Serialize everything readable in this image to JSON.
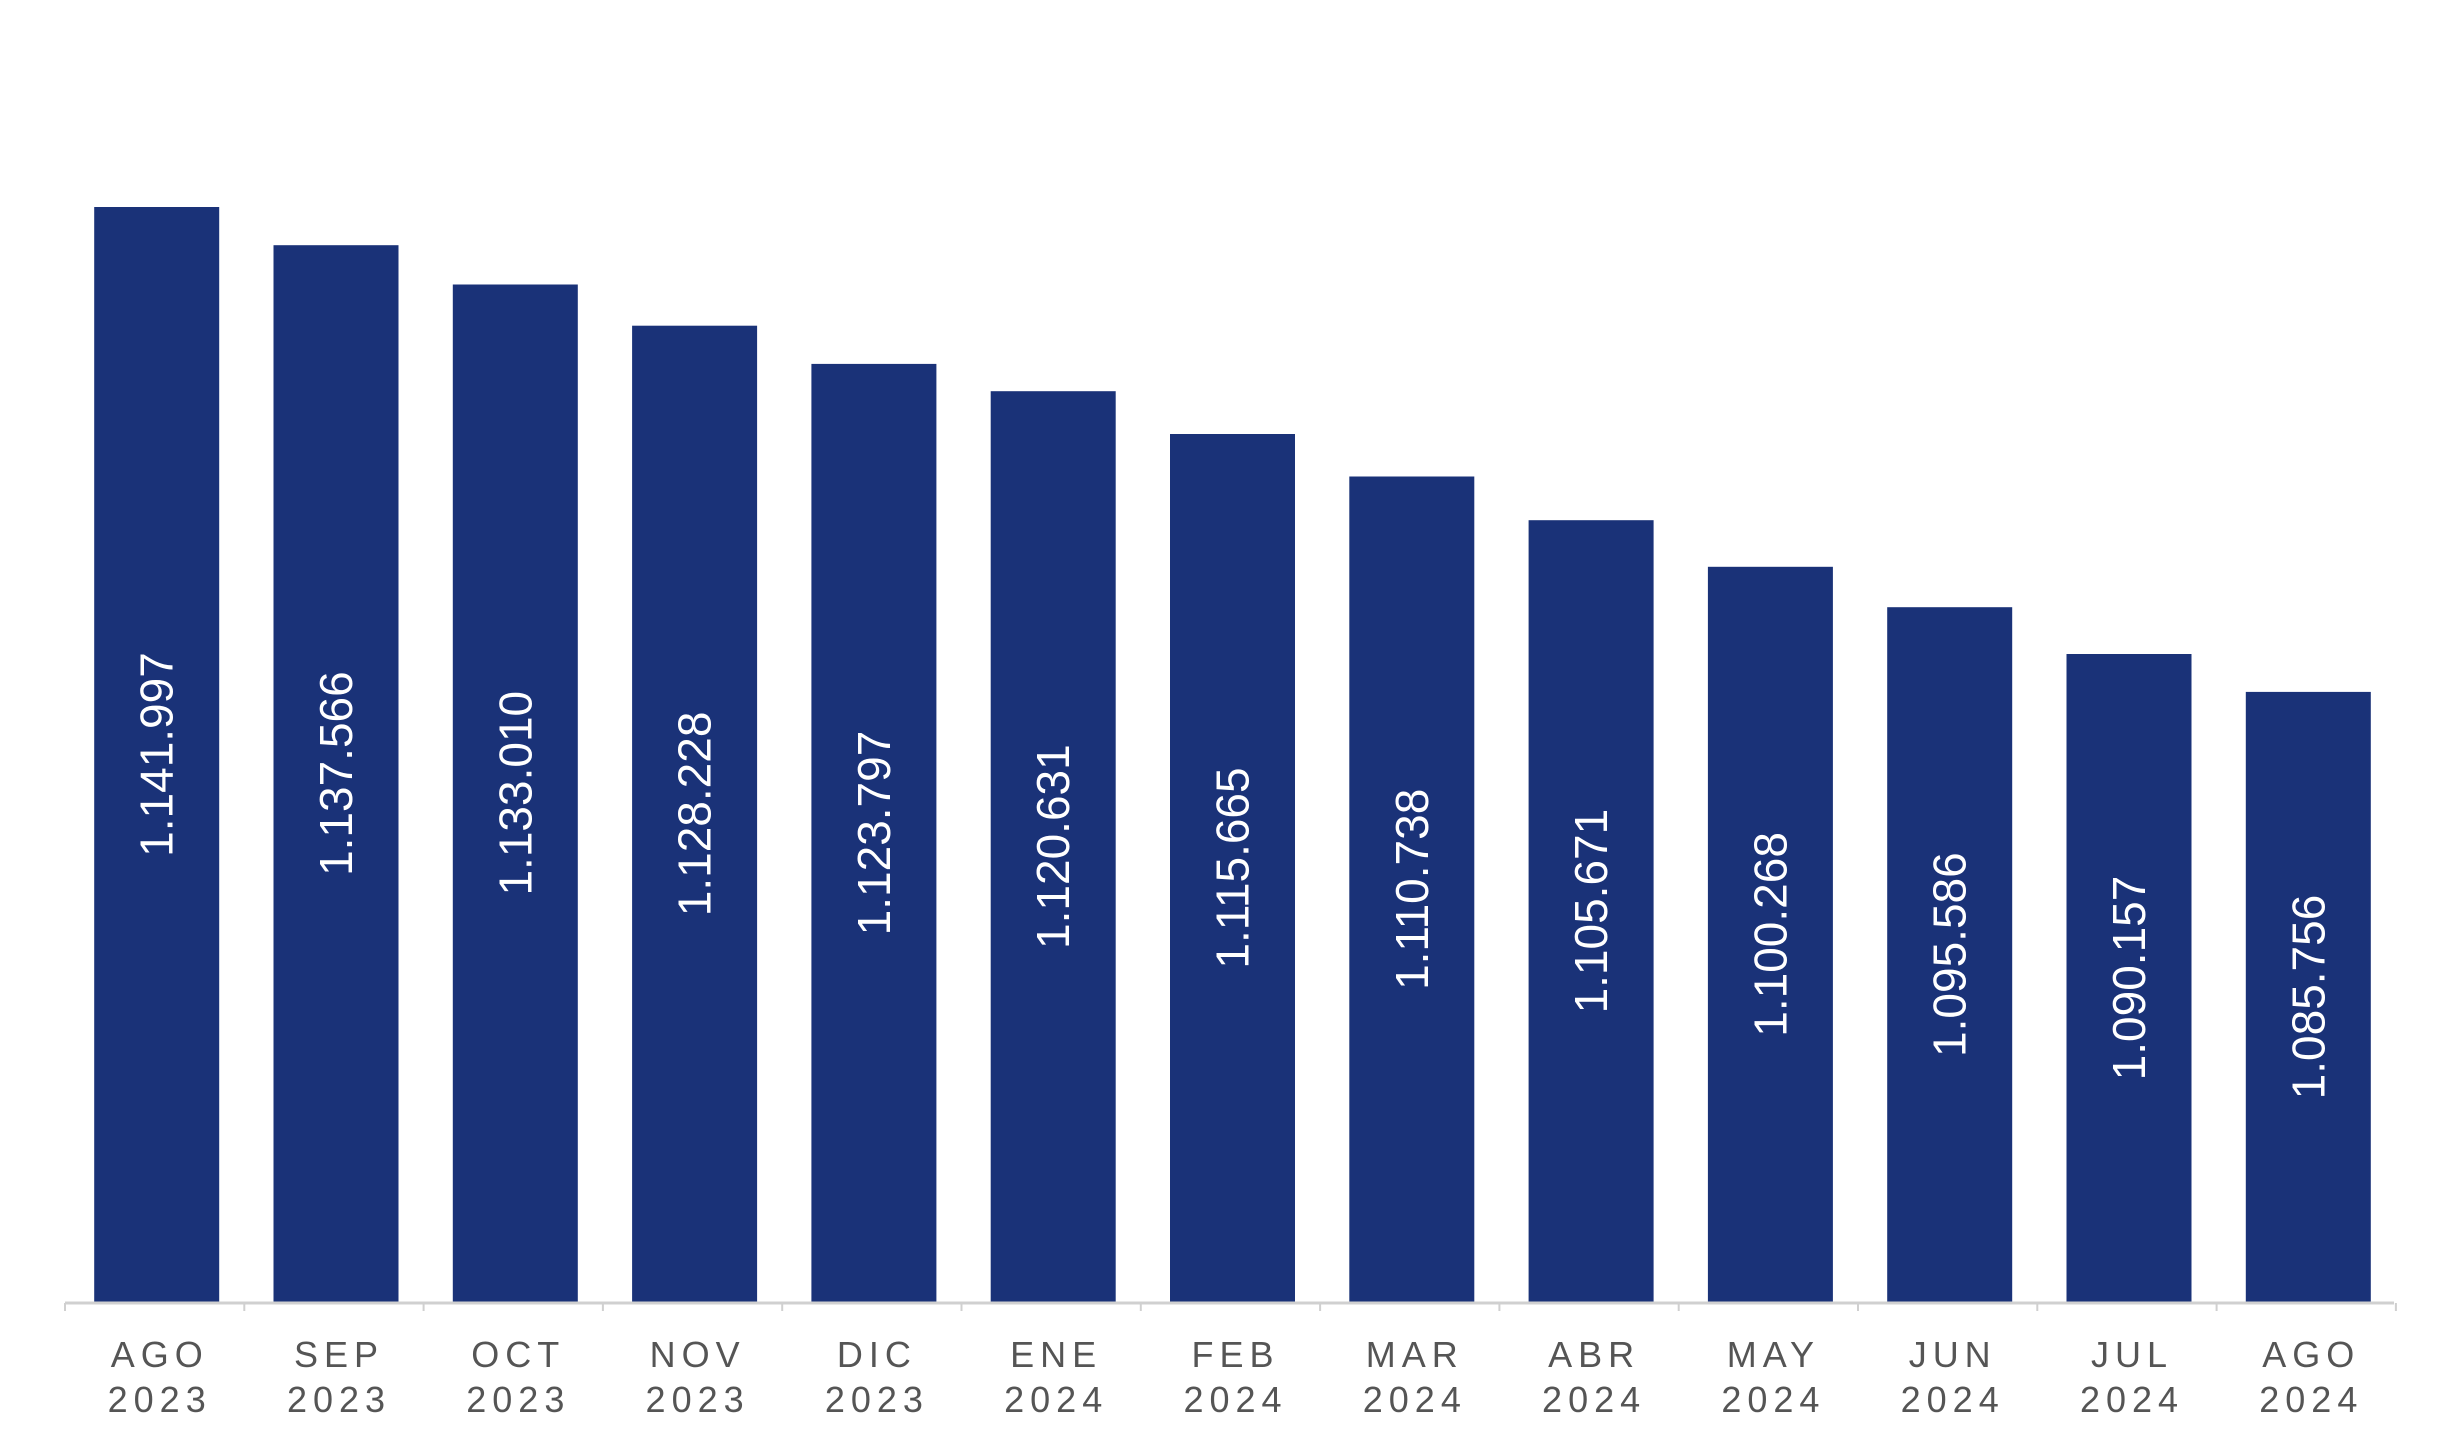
{
  "chart_data": {
    "type": "bar",
    "title": "",
    "xlabel": "",
    "ylabel": "",
    "grid": false,
    "legend": "none",
    "bar_color": "#1a3278",
    "label_color": "#ffffff",
    "tick_color": "#555555",
    "categories": [
      [
        "AGO",
        "2023"
      ],
      [
        "SEP",
        "2023"
      ],
      [
        "OCT",
        "2023"
      ],
      [
        "NOV",
        "2023"
      ],
      [
        "DIC",
        "2023"
      ],
      [
        "ENE",
        "2024"
      ],
      [
        "FEB",
        "2024"
      ],
      [
        "MAR",
        "2024"
      ],
      [
        "ABR",
        "2024"
      ],
      [
        "MAY",
        "2024"
      ],
      [
        "JUN",
        "2024"
      ],
      [
        "JUL",
        "2024"
      ],
      [
        "AGO",
        "2024"
      ]
    ],
    "values": [
      1141997,
      1137566,
      1133010,
      1128228,
      1123797,
      1120631,
      1115665,
      1110738,
      1105671,
      1100268,
      1095586,
      1090157,
      1085756
    ],
    "value_labels": [
      "1.141.997",
      "1.137.566",
      "1.133.010",
      "1.128.228",
      "1.123.797",
      "1.120.631",
      "1.115.665",
      "1.110.738",
      "1.105.671",
      "1.100.268",
      "1.095.586",
      "1.090.157",
      "1.085.756"
    ],
    "ylim": [
      1015000,
      1150000
    ]
  }
}
